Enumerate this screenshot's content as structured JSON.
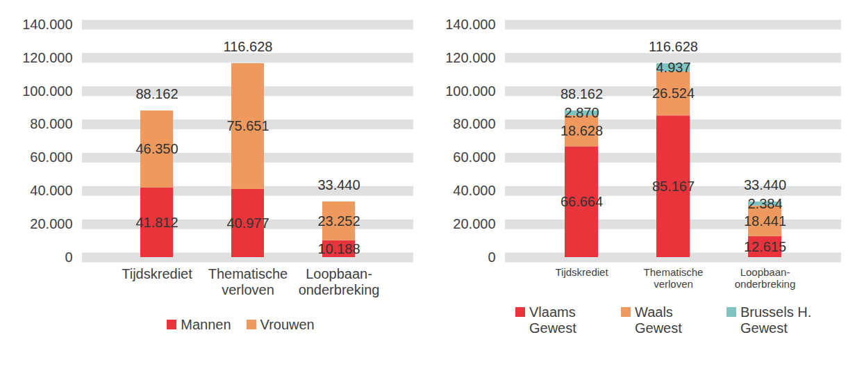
{
  "chart_data": [
    {
      "type": "bar",
      "stacked": true,
      "data_labels": true,
      "grid": true,
      "legend": "bottom",
      "categories": [
        "Tijdskrediet",
        "Thematische\nverloven",
        "Loopbaan-\nonderbreking"
      ],
      "series": [
        {
          "name": "Mannen",
          "color": "#e8343a",
          "values": [
            41812,
            40977,
            10188
          ],
          "value_labels": [
            "41.812",
            "40.977",
            "10.188"
          ]
        },
        {
          "name": "Vrouwen",
          "color": "#f0995e",
          "values": [
            46350,
            75651,
            23252
          ],
          "value_labels": [
            "46.350",
            "75.651",
            "23.252"
          ]
        }
      ],
      "totals": [
        88162,
        116628,
        33440
      ],
      "total_labels": [
        "88.162",
        "116.628",
        "33.440"
      ],
      "ylim": [
        0,
        140000
      ],
      "yticks": [
        0,
        {
          "value": 20000,
          "label": "20.000"
        },
        {
          "value": 40000,
          "label": "40.000"
        },
        {
          "value": 60000,
          "label": "60.000"
        },
        {
          "value": 80000,
          "label": "80.000"
        },
        {
          "value": 100000,
          "label": "100.000"
        },
        {
          "value": 120000,
          "label": "120.000"
        },
        {
          "value": 140000,
          "label": "140.000"
        }
      ]
    },
    {
      "type": "bar",
      "stacked": true,
      "data_labels": true,
      "grid": true,
      "legend": "bottom",
      "categories": [
        "Tijdskrediet",
        "Thematische\nverloven",
        "Loopbaan-\nonderbreking"
      ],
      "series": [
        {
          "name": "Vlaams Gewest",
          "color": "#e8343a",
          "values": [
            66664,
            85167,
            12615
          ],
          "value_labels": [
            "66.664",
            "85.167",
            "12.615"
          ]
        },
        {
          "name": "Waals Gewest",
          "color": "#f0995e",
          "values": [
            18628,
            26524,
            18441
          ],
          "value_labels": [
            "18.628",
            "26.524",
            "18.441"
          ]
        },
        {
          "name": "Brussels H. Gewest",
          "color": "#7fc4c0",
          "values": [
            2870,
            4937,
            2384
          ],
          "value_labels": [
            "2.870",
            "4.937",
            "2.384"
          ]
        }
      ],
      "totals": [
        88162,
        116628,
        33440
      ],
      "total_labels": [
        "88.162",
        "116.628",
        "33.440"
      ],
      "ylim": [
        0,
        140000
      ],
      "yticks": [
        0,
        {
          "value": 20000,
          "label": "20.000"
        },
        {
          "value": 40000,
          "label": "40.000"
        },
        {
          "value": 60000,
          "label": "60.000"
        },
        {
          "value": 80000,
          "label": "80.000"
        },
        {
          "value": 100000,
          "label": "100.000"
        },
        {
          "value": 120000,
          "label": "120.000"
        },
        {
          "value": 140000,
          "label": "140.000"
        }
      ]
    }
  ]
}
